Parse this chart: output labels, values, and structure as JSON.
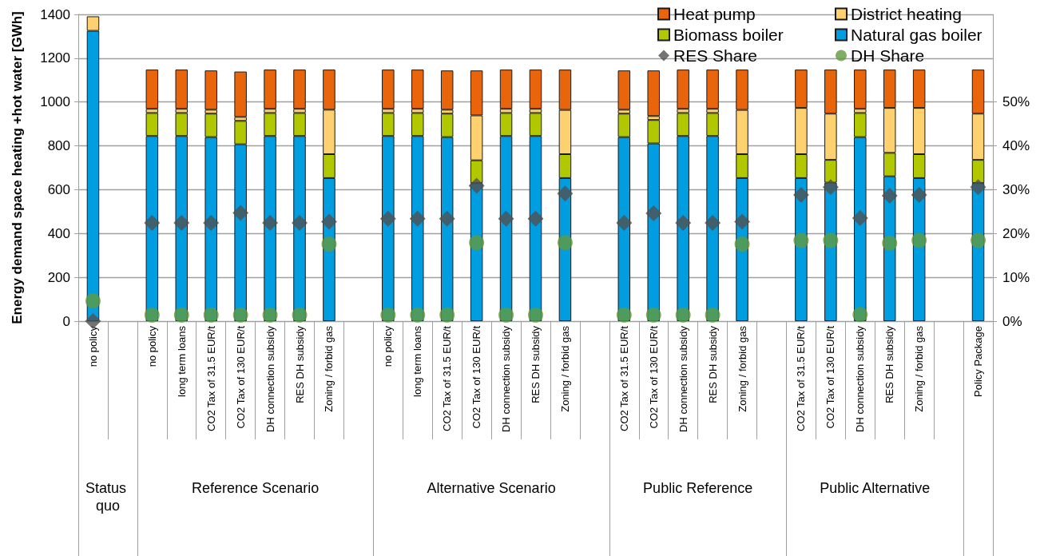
{
  "chart_data": {
    "type": "bar",
    "stacked": true,
    "ylabel": "Energy demand space heating +hot water [GWh]",
    "categories": [
      "no policy",
      null,
      "no policy",
      "long term loans",
      "CO2 Tax of 31.5 EUR/t",
      "CO2 Tax of 130 EUR/t",
      "DH connection subsidy",
      "RES DH subsidy",
      "Zoning / forbid gas",
      null,
      "no policy",
      "long term loans",
      "CO2 Tax of 31.5 EUR/t",
      "CO2 Tax of 130 EUR/t",
      "DH connection subsidy",
      "RES DH subsidy",
      "Zoning / forbid gas",
      null,
      "CO2 Tax of 31.5 EUR/t",
      "CO2 Tax of 130 EUR/t",
      "DH connection subsidy",
      "RES DH subsidy",
      "Zoning / forbid gas",
      null,
      "CO2 Tax of 31.5 EUR/t",
      "CO2 Tax of 130 EUR/t",
      "DH connection subsidy",
      "RES DH subsidy",
      "Zoning / forbid gas",
      null,
      "Policy Package"
    ],
    "annotations": [
      "Status quo",
      "Reference Scenario",
      "Alternative Scenario",
      "Public Reference",
      "Public Alternative"
    ],
    "series": [
      {
        "name": "Natural gas boiler",
        "color": "#009ee0",
        "values": [
          1325,
          null,
          845,
          845,
          840,
          807,
          845,
          845,
          653,
          null,
          845,
          845,
          840,
          630,
          845,
          845,
          653,
          null,
          840,
          811,
          845,
          845,
          653,
          null,
          653,
          632,
          840,
          661,
          653,
          null,
          630
        ]
      },
      {
        "name": "Biomass boiler",
        "color": "#b1c800",
        "values": [
          null,
          null,
          105,
          105,
          107,
          107,
          105,
          105,
          109,
          null,
          105,
          105,
          107,
          104,
          105,
          105,
          109,
          null,
          107,
          107,
          105,
          105,
          109,
          null,
          109,
          104,
          110,
          107,
          109,
          null,
          106
        ]
      },
      {
        "name": "District heating",
        "color": "#fdd16f",
        "values": [
          66,
          null,
          19,
          19,
          18,
          18,
          19,
          19,
          203,
          null,
          19,
          19,
          18,
          205,
          19,
          19,
          202,
          null,
          18,
          18,
          19,
          19,
          202,
          null,
          211,
          211,
          19,
          205,
          211,
          null,
          211
        ]
      },
      {
        "name": "Heat pump",
        "color": "#e8650c",
        "values": [
          null,
          null,
          179,
          179,
          179,
          207,
          179,
          179,
          183,
          null,
          179,
          179,
          179,
          205,
          179,
          179,
          184,
          null,
          179,
          208,
          179,
          179,
          184,
          null,
          175,
          201,
          179,
          175,
          175,
          null,
          201
        ]
      },
      {
        "name": "RES Share",
        "type": "scatter",
        "axis": "y2",
        "marker": "diamond",
        "color": "#505050",
        "values": [
          0,
          null,
          22.4,
          22.4,
          22.4,
          24.7,
          22.4,
          22.4,
          22.7,
          null,
          23.4,
          23.4,
          23.4,
          30.9,
          23.4,
          23.4,
          29.1,
          null,
          22.4,
          24.6,
          22.4,
          22.4,
          22.7,
          null,
          28.8,
          30.6,
          23.5,
          28.6,
          28.8,
          null,
          30.6
        ]
      },
      {
        "name": "DH Share",
        "type": "scatter",
        "axis": "y2",
        "marker": "circle",
        "color": "#629a3f",
        "values": [
          4.6,
          null,
          1.4,
          1.4,
          1.4,
          1.4,
          1.4,
          1.4,
          17.6,
          null,
          1.4,
          1.4,
          1.4,
          17.9,
          1.4,
          1.4,
          17.9,
          null,
          1.4,
          1.4,
          1.4,
          1.4,
          17.6,
          null,
          18.4,
          18.4,
          1.5,
          17.8,
          18.4,
          null,
          18.4
        ]
      }
    ],
    "ylim": [
      0,
      1400
    ],
    "yticks": [
      0,
      200,
      400,
      600,
      800,
      1000,
      1200,
      1400
    ],
    "y2lim": [
      0,
      70
    ],
    "y2ticks": [
      {
        "value": 0,
        "label": "0%"
      },
      {
        "value": 10,
        "label": "10%"
      },
      {
        "value": 20,
        "label": "20%"
      },
      {
        "value": 30,
        "label": "30%"
      },
      {
        "value": 40,
        "label": "40%"
      },
      {
        "value": 50,
        "label": "50%"
      }
    ],
    "grid": "y",
    "legend": "top right"
  }
}
